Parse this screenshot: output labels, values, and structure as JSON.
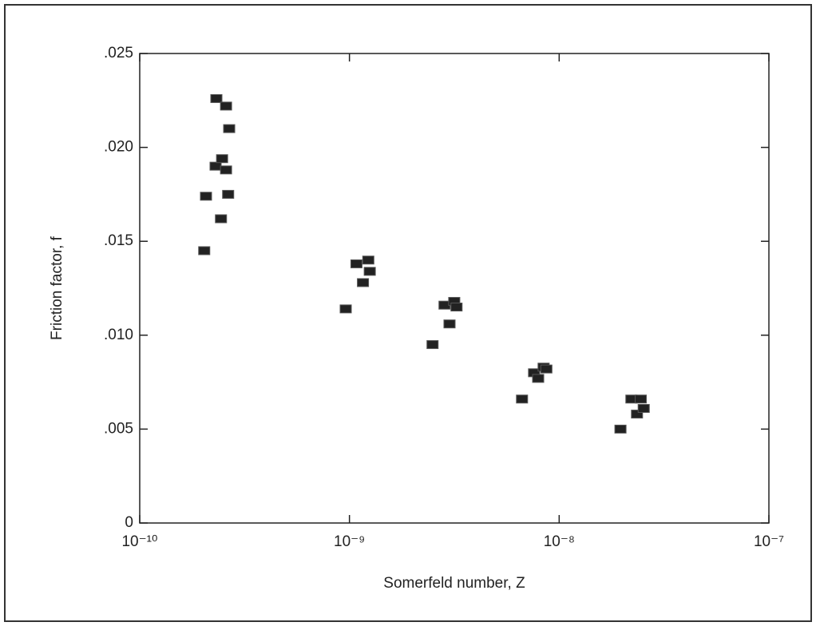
{
  "chart_data": {
    "type": "scatter",
    "x_label": "Somerfeld number, Z",
    "y_label": "Friction factor, f",
    "log_x": true,
    "color": "#222222",
    "xlim": [
      1e-10,
      1e-07
    ],
    "xticks": [
      {
        "value": 1e-10,
        "label": "10⁻¹⁰"
      },
      {
        "value": 1e-09,
        "label": "10⁻⁹"
      },
      {
        "value": 1e-08,
        "label": "10⁻⁸"
      },
      {
        "value": 1e-07,
        "label": "10⁻⁷"
      }
    ],
    "ylim": [
      0,
      0.025
    ],
    "yticks": [
      0,
      {
        "value": 0.005,
        "label": ".005"
      },
      {
        "value": 0.01,
        "label": ".010"
      },
      {
        "value": 0.015,
        "label": ".015"
      },
      {
        "value": 0.02,
        "label": ".020"
      },
      {
        "value": 0.025,
        "label": ".025"
      }
    ],
    "x": [
      2.03e-10,
      2.07e-10,
      2.32e-10,
      2.58e-10,
      2.67e-10,
      2.3e-10,
      2.47e-10,
      2.58e-10,
      2.64e-10,
      2.44e-10,
      9.6e-10,
      1.08e-09,
      1.16e-09,
      1.23e-09,
      1.25e-09,
      2.49e-09,
      2.84e-09,
      3e-09,
      3.16e-09,
      3.24e-09,
      6.65e-09,
      7.59e-09,
      7.94e-09,
      8.43e-09,
      8.69e-09,
      1.96e-08,
      2.21e-08,
      2.35e-08,
      2.45e-08,
      2.53e-08
    ],
    "values": [
      0.0145,
      0.0174,
      0.0226,
      0.0222,
      0.021,
      0.019,
      0.0194,
      0.0188,
      0.0175,
      0.0162,
      0.0114,
      0.0138,
      0.0128,
      0.014,
      0.0134,
      0.0095,
      0.0116,
      0.0106,
      0.0118,
      0.0115,
      0.0066,
      0.008,
      0.0077,
      0.0083,
      0.0082,
      0.005,
      0.0066,
      0.0058,
      0.0066,
      0.0061
    ]
  }
}
